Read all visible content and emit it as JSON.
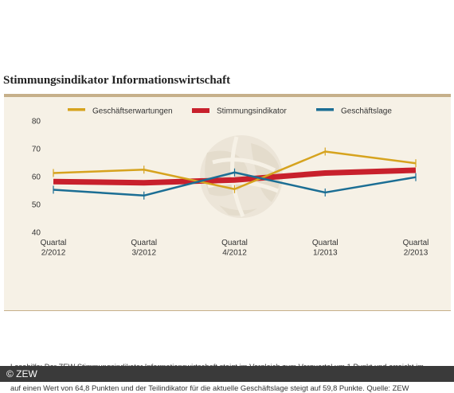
{
  "title": "Stimmungsindikator Informationswirtschaft",
  "footer": {
    "copyright": "© ZEW"
  },
  "colors": {
    "expectations": "#d6a31e",
    "indicator": "#c8202c",
    "situation": "#1b6e94"
  },
  "chart_data": {
    "type": "line",
    "title": "Stimmungsindikator Informationswirtschaft",
    "categories": [
      "Quartal 2/2012",
      "Quartal 3/2012",
      "Quartal 4/2012",
      "Quartal 1/2013",
      "Quartal 2/2013"
    ],
    "category_lines": [
      [
        "Quartal",
        "2/2012"
      ],
      [
        "Quartal",
        "3/2012"
      ],
      [
        "Quartal",
        "4/2012"
      ],
      [
        "Quartal",
        "1/2013"
      ],
      [
        "Quartal",
        "2/2013"
      ]
    ],
    "yticks": [
      40,
      50,
      60,
      70,
      80
    ],
    "ylim": [
      40,
      80
    ],
    "grid": false,
    "legend": "top",
    "series": [
      {
        "name": "Geschäftserwartungen",
        "color": "#d6a31e",
        "values": [
          61.3,
          62.5,
          55.5,
          69.0,
          64.8
        ]
      },
      {
        "name": "Stimmungsindikator",
        "color": "#c8202c",
        "values": [
          58.2,
          57.8,
          58.8,
          61.3,
          62.3
        ]
      },
      {
        "name": "Geschäftslage",
        "color": "#1b6e94",
        "values": [
          55.3,
          53.2,
          61.5,
          54.3,
          59.8
        ]
      }
    ],
    "note": "Lesehilfe: Der ZEW Stimmungsindikator Informationswirtschaft steigt im Vergleich zum Vorquartal um 1 Punkt und erreicht im zweiten Quartal 2013 einen Wert von 62,3 Punkten. Der Teilindikator für die Geschäftserwartungen für das dritte Quartal 2013 sinkt auf einen Wert von 64,8 Punkten und der Teilindikator für die aktuelle Geschäftslage steigt auf 59,8 Punkte.    Quelle: ZEW"
  }
}
